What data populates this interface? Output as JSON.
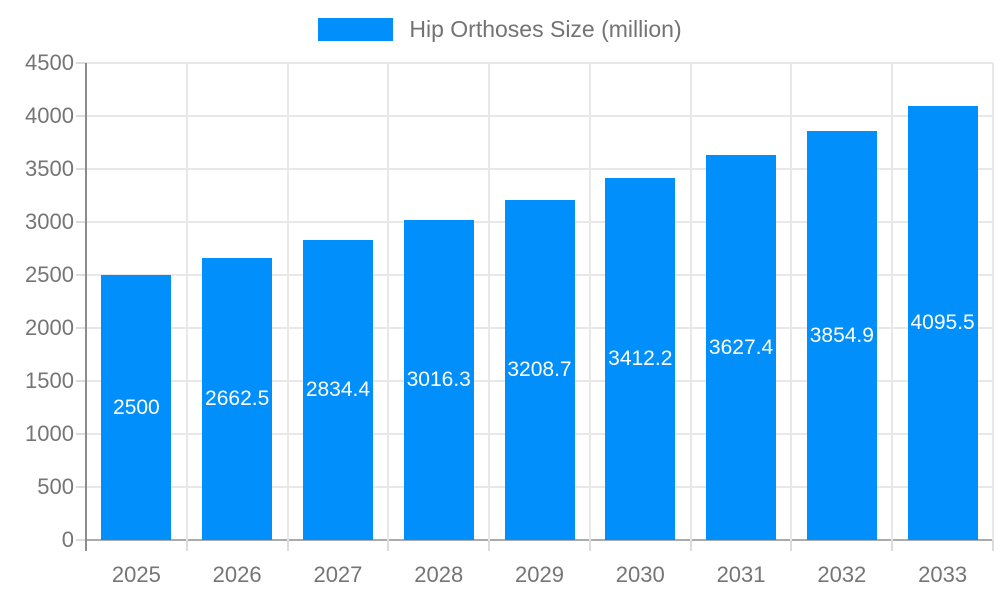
{
  "chart_data": {
    "type": "bar",
    "title": "Hip Orthoses Size (million)",
    "categories": [
      "2025",
      "2026",
      "2027",
      "2028",
      "2029",
      "2030",
      "2031",
      "2032",
      "2033"
    ],
    "series": [
      {
        "name": "Hip Orthoses Size (million)",
        "values": [
          2500,
          2662.5,
          2834.4,
          3016.3,
          3208.7,
          3412.2,
          3627.4,
          3854.9,
          4095.5
        ]
      }
    ],
    "value_labels": [
      "2500",
      "2662.5",
      "2834.4",
      "3016.3",
      "3208.7",
      "3412.2",
      "3627.4",
      "3854.9",
      "4095.5"
    ],
    "xlabel": "",
    "ylabel": "",
    "ylim": [
      0,
      4500
    ],
    "yticks": [
      0,
      500,
      1000,
      1500,
      2000,
      2500,
      3000,
      3500,
      4000,
      4500
    ],
    "grid": "on",
    "legend_position": "top-center",
    "colors": {
      "bar": "#008FFB",
      "bar_value_label": "#ffffff",
      "axis_text": "#757575",
      "legend_text": "#737373",
      "gridline": "#e8e8e8",
      "axis_line": "#8c8c8c",
      "baseline": "#ababab",
      "background": "#ffffff"
    }
  }
}
